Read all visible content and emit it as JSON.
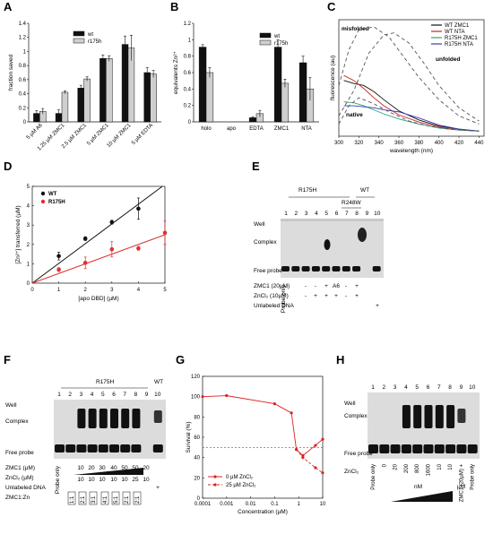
{
  "panels": {
    "A": {
      "label": "A",
      "chart_data": {
        "type": "bar",
        "ylabel": "fraction saved",
        "ylim": [
          0,
          1.4
        ],
        "yticks": [
          "0",
          "0.2",
          "0.4",
          "0.6",
          "0.8",
          "1",
          "1.2",
          "1.4"
        ],
        "categories": [
          "5 µM A6",
          "1.25 µM ZMC1",
          "2.5 µM ZMC1",
          "5 µM ZMC1",
          "10 µM ZMC1",
          "5 µM EDTA"
        ],
        "series": [
          {
            "name": "wt",
            "color": "#111111",
            "values": [
              0.12,
              0.12,
              0.48,
              0.9,
              1.1,
              0.7
            ]
          },
          {
            "name": "r175h",
            "color": "#cfcfcf",
            "values": [
              0.15,
              0.42,
              0.61,
              0.9,
              1.05,
              0.68
            ]
          }
        ],
        "errors": [
          [
            0.04,
            0.05,
            0.04,
            0.05,
            0.12,
            0.07
          ],
          [
            0.04,
            0.02,
            0.03,
            0.04,
            0.18,
            0.05
          ]
        ],
        "legend": "top-left"
      }
    },
    "B": {
      "label": "B",
      "chart_data": {
        "type": "bar",
        "ylabel": "equivalents Zn²⁺",
        "ylim": [
          0,
          1.2
        ],
        "yticks": [
          "0",
          "0.2",
          "0.4",
          "0.6",
          "0.8",
          "1",
          "1.2"
        ],
        "categories": [
          "holo",
          "apo",
          "EDTA",
          "ZMC1",
          "NTA"
        ],
        "series": [
          {
            "name": "wt",
            "color": "#111111",
            "values": [
              0.91,
              0.0,
              0.05,
              0.91,
              0.72
            ]
          },
          {
            "name": "r175h",
            "color": "#cfcfcf",
            "values": [
              0.6,
              0.0,
              0.1,
              0.47,
              0.4
            ]
          }
        ],
        "errors": [
          [
            0.03,
            0,
            0.01,
            0.09,
            0.08
          ],
          [
            0.06,
            0,
            0.04,
            0.05,
            0.14
          ]
        ],
        "legend": "top-right"
      }
    },
    "C": {
      "label": "C",
      "chart_data": {
        "type": "line",
        "ylabel": "fluorescence (au)",
        "xlabel": "wavelength (nm)",
        "xlim": [
          300,
          445
        ],
        "xticks": [
          300,
          320,
          340,
          360,
          380,
          400,
          420,
          440
        ],
        "annotations": [
          "misfolded",
          "unfolded",
          "native"
        ],
        "series": [
          {
            "name": "WT ZMC1",
            "color": "#111111",
            "x": [
              305,
              315,
              325,
              335,
              345,
              360,
              380,
              400,
              420,
              440
            ],
            "y": [
              0.55,
              0.52,
              0.5,
              0.44,
              0.36,
              0.25,
              0.16,
              0.1,
              0.07,
              0.05
            ]
          },
          {
            "name": "WT NTA",
            "color": "#cc2222",
            "x": [
              305,
              315,
              325,
              335,
              345,
              360,
              380,
              400,
              420,
              440
            ],
            "y": [
              0.6,
              0.55,
              0.47,
              0.38,
              0.3,
              0.21,
              0.14,
              0.09,
              0.06,
              0.05
            ]
          },
          {
            "name": "R175H ZMC1",
            "color": "#2aa37a",
            "x": [
              305,
              315,
              325,
              335,
              345,
              360,
              380,
              400,
              420,
              440
            ],
            "y": [
              0.34,
              0.33,
              0.3,
              0.26,
              0.22,
              0.17,
              0.12,
              0.08,
              0.06,
              0.05
            ]
          },
          {
            "name": "R175H NTA",
            "color": "#3b3bb0",
            "x": [
              305,
              315,
              325,
              335,
              345,
              360,
              380,
              400,
              420,
              440
            ],
            "y": [
              0.3,
              0.3,
              0.29,
              0.28,
              0.26,
              0.24,
              0.18,
              0.11,
              0.07,
              0.05
            ]
          },
          {
            "name": "",
            "color": "#555555",
            "dashed": true,
            "x": [
              300,
              310,
              320,
              335,
              350,
              365,
              380,
              400,
              420,
              440
            ],
            "y": [
              0.5,
              0.85,
              1.05,
              1.08,
              0.98,
              0.78,
              0.58,
              0.36,
              0.2,
              0.12
            ]
          },
          {
            "name": "",
            "color": "#555555",
            "dashed": true,
            "x": [
              300,
              315,
              330,
              345,
              355,
              370,
              385,
              400,
              420,
              440
            ],
            "y": [
              0.2,
              0.45,
              0.82,
              1.0,
              1.02,
              0.92,
              0.72,
              0.5,
              0.28,
              0.15
            ]
          },
          {
            "name": "",
            "color": "#555555",
            "dashed": true,
            "x": [
              300,
              310,
              320,
              335,
              350,
              370,
              390,
              410,
              440
            ],
            "y": [
              0.12,
              0.3,
              0.38,
              0.32,
              0.24,
              0.15,
              0.1,
              0.07,
              0.05
            ]
          }
        ],
        "legend": "top-right"
      }
    },
    "D": {
      "label": "D",
      "chart_data": {
        "type": "scatter",
        "ylabel": "[Zn²⁺] transferred (µM)",
        "xlabel": "[apo DBD] (µM)",
        "xlim": [
          0,
          5
        ],
        "ylim": [
          0,
          5
        ],
        "xticks": [
          "0",
          "1",
          "2",
          "3",
          "4",
          "5"
        ],
        "yticks": [
          "0",
          "1",
          "2",
          "3",
          "4",
          "5"
        ],
        "series": [
          {
            "name": "WT",
            "color": "#111111",
            "x": [
              1,
              2,
              3,
              4
            ],
            "y": [
              1.4,
              2.3,
              3.15,
              3.85
            ],
            "err": [
              0.2,
              0.1,
              0.1,
              0.55
            ],
            "fit": [
              0,
              1.02
            ]
          },
          {
            "name": "R175H",
            "color": "#e03030",
            "x": [
              1,
              2,
              3,
              4,
              5
            ],
            "y": [
              0.7,
              1.05,
              1.75,
              1.8,
              2.6
            ],
            "err": [
              0.1,
              0.3,
              0.4,
              0.1,
              0.6
            ],
            "fit": [
              0,
              0.5
            ]
          }
        ],
        "legend": "top-left"
      }
    },
    "E": {
      "label": "E",
      "group_r175h": "R175H",
      "group_wt": "WT",
      "group_r248w": "R248W",
      "lanes": [
        "1",
        "2",
        "3",
        "4",
        "5",
        "6",
        "7",
        "8",
        "9",
        "10"
      ],
      "left_labels": [
        "Well",
        "Complex",
        "Free probe"
      ],
      "rows": [
        {
          "label": "ZMC1 (20µM)",
          "values": [
            "-",
            "-",
            "+",
            "A6",
            "-",
            "+"
          ]
        },
        {
          "label": "ZnCl₂ (10µM)",
          "values": [
            "-",
            "+",
            "+",
            "+",
            "-",
            "+"
          ]
        },
        {
          "label": "Unlabeled DNA",
          "values": [
            "+"
          ]
        }
      ],
      "probe_only": "Probe only"
    },
    "F": {
      "label": "F",
      "group_r175h": "R175H",
      "group_wt": "WT",
      "lanes": [
        "1",
        "2",
        "3",
        "4",
        "5",
        "6",
        "7",
        "8",
        "9",
        "10"
      ],
      "left_labels": [
        "Well",
        "Complex",
        "Free probe"
      ],
      "rows": [
        {
          "label": "ZMC1 (µM)",
          "values": [
            "10",
            "20",
            "30",
            "40",
            "50",
            "50",
            "20"
          ]
        },
        {
          "label": "ZnCl₂ (µM)",
          "values": [
            "10",
            "10",
            "10",
            "10",
            "10",
            "25",
            "10"
          ]
        },
        {
          "label": "Unlabeled DNA",
          "values": [
            "+"
          ]
        },
        {
          "label": "ZMC1:Zn",
          "values": [
            "1:1",
            "2:1",
            "3:1",
            "4:1",
            "5:1",
            "2:1",
            "2:1"
          ]
        }
      ],
      "probe_only": "Probe only"
    },
    "G": {
      "label": "G",
      "chart_data": {
        "type": "line",
        "ylabel": "Survival (%)",
        "xlabel": "Concentration (µM)",
        "xscale": "log",
        "xlim": [
          0.0001,
          10
        ],
        "ylim": [
          0,
          120
        ],
        "xticks": [
          "0.0001",
          "0.001",
          "0.01",
          "0.1",
          "1",
          "10"
        ],
        "yticks": [
          "0",
          "20",
          "40",
          "60",
          "80",
          "100",
          "120"
        ],
        "threshold": 50,
        "series": [
          {
            "name": "0 µM ZnCl₂",
            "color": "#dd2222",
            "dashed": false,
            "x": [
              0.0001,
              0.001,
              0.1,
              0.5,
              0.8,
              1.5,
              5,
              10
            ],
            "y": [
              100,
              101,
              93,
              84,
              48,
              42,
              52,
              58
            ]
          },
          {
            "name": "25 µM ZnCl₂",
            "color": "#dd2222",
            "dashed": true,
            "x": [
              0.8,
              1.5,
              5,
              10
            ],
            "y": [
              48,
              40,
              30,
              25
            ]
          }
        ],
        "legend": "bottom-left"
      }
    },
    "H": {
      "label": "H",
      "lanes": [
        "1",
        "2",
        "3",
        "4",
        "5",
        "6",
        "7",
        "8",
        "9",
        "10"
      ],
      "left_labels": [
        "Well",
        "Complex",
        "Free probe"
      ],
      "zncl2_label": "ZnCl₂",
      "lane_values": [
        "Probe only",
        "0",
        "20",
        "200",
        "800",
        "1600",
        "10",
        "10",
        "ZMC1 (20µM) +",
        "Probe only"
      ],
      "nM": "nM",
      "uM": "µM"
    }
  }
}
